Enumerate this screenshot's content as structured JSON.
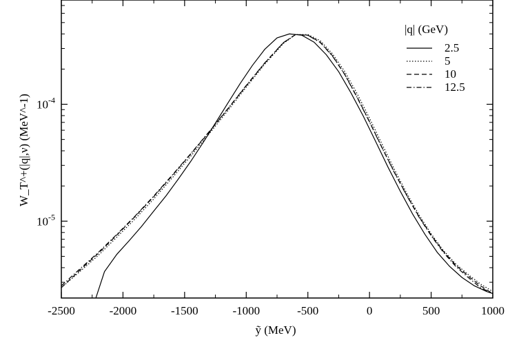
{
  "chart_data": {
    "type": "line",
    "xlabel": "ỹ (MeV)",
    "ylabel": "W_T^+(|q|,ν) (MeV^-1)",
    "xlim": [
      -2500,
      1000
    ],
    "ylim": [
      2.2e-06,
      0.00078
    ],
    "yscale": "log",
    "grid": false,
    "legend_title": "|q| (GeV)",
    "legend_position": "top-right",
    "x_ticks": [
      -2500,
      -2000,
      -1500,
      -1000,
      -500,
      0,
      500,
      1000
    ],
    "x_tick_labels": [
      "-2500",
      "-2000",
      "-1500",
      "-1000",
      "-500",
      "0",
      "500",
      "1000"
    ],
    "y_tick_labels": [
      {
        "value": 0.0001,
        "base": "10",
        "exp": "-4"
      },
      {
        "value": 1e-05,
        "base": "10",
        "exp": "-5"
      }
    ],
    "series": [
      {
        "name": "2.5",
        "style": "solid",
        "color": "#000000",
        "x": [
          -2220,
          -2150,
          -2050,
          -1950,
          -1850,
          -1750,
          -1650,
          -1550,
          -1450,
          -1350,
          -1250,
          -1150,
          -1050,
          -950,
          -850,
          -750,
          -650,
          -550,
          -450,
          -350,
          -250,
          -150,
          -50,
          50,
          150,
          250,
          350,
          450,
          550,
          650,
          750,
          850,
          950,
          1000
        ],
        "y": [
          2.2e-06,
          3.7e-06,
          5.2e-06,
          6.8e-06,
          9e-06,
          1.22e-05,
          1.65e-05,
          2.3e-05,
          3.25e-05,
          4.7e-05,
          6.9e-05,
          0.000102,
          0.00015,
          0.000215,
          0.000295,
          0.00037,
          0.0004,
          0.00039,
          0.00034,
          0.000265,
          0.00019,
          0.000125,
          7.9e-05,
          4.8e-05,
          2.9e-05,
          1.8e-05,
          1.15e-05,
          7.7e-06,
          5.4e-06,
          4.1e-06,
          3.3e-06,
          2.8e-06,
          2.5e-06,
          2.4e-06
        ]
      },
      {
        "name": "5",
        "style": "dotted",
        "color": "#000000",
        "x": [
          -2500,
          -2350,
          -2200,
          -2050,
          -1900,
          -1750,
          -1600,
          -1450,
          -1300,
          -1150,
          -1000,
          -850,
          -700,
          -600,
          -500,
          -400,
          -300,
          -200,
          -100,
          0,
          100,
          200,
          300,
          400,
          500,
          600,
          700,
          800,
          900,
          1000
        ],
        "y": [
          2.7e-06,
          3.7e-06,
          5.1e-06,
          7.3e-06,
          1.05e-05,
          1.55e-05,
          2.35e-05,
          3.6e-05,
          5.6e-05,
          8.8e-05,
          0.00014,
          0.00022,
          0.00033,
          0.000395,
          0.000395,
          0.00035,
          0.00027,
          0.00019,
          0.000123,
          7.6e-05,
          4.6e-05,
          2.8e-05,
          1.75e-05,
          1.14e-05,
          7.8e-06,
          5.6e-06,
          4.3e-06,
          3.5e-06,
          2.9e-06,
          2.5e-06
        ]
      },
      {
        "name": "10",
        "style": "dashed",
        "color": "#000000",
        "x": [
          -2500,
          -2350,
          -2200,
          -2050,
          -1900,
          -1750,
          -1600,
          -1450,
          -1300,
          -1150,
          -1000,
          -850,
          -700,
          -600,
          -500,
          -400,
          -300,
          -200,
          -100,
          0,
          100,
          200,
          300,
          400,
          500,
          600,
          700,
          800,
          900,
          1000
        ],
        "y": [
          2.7e-06,
          3.8e-06,
          5.3e-06,
          7.6e-06,
          1.1e-05,
          1.62e-05,
          2.45e-05,
          3.75e-05,
          5.8e-05,
          9.1e-05,
          0.000144,
          0.000225,
          0.000335,
          0.000395,
          0.00039,
          0.00034,
          0.00026,
          0.00018,
          0.000115,
          7.1e-05,
          4.3e-05,
          2.65e-05,
          1.68e-05,
          1.1e-05,
          7.6e-06,
          5.5e-06,
          4.2e-06,
          3.4e-06,
          2.8e-06,
          2.4e-06
        ]
      },
      {
        "name": "12.5",
        "style": "dashdot",
        "color": "#000000",
        "x": [
          -2500,
          -2350,
          -2200,
          -2050,
          -1900,
          -1750,
          -1600,
          -1450,
          -1300,
          -1150,
          -1000,
          -850,
          -700,
          -600,
          -500,
          -400,
          -300,
          -200,
          -100,
          0,
          100,
          200,
          300,
          400,
          500,
          600,
          700,
          800,
          900,
          1000
        ],
        "y": [
          2.8e-06,
          3.9e-06,
          5.4e-06,
          7.7e-06,
          1.11e-05,
          1.64e-05,
          2.48e-05,
          3.78e-05,
          5.85e-05,
          9.15e-05,
          0.000145,
          0.000226,
          0.000336,
          0.000395,
          0.000389,
          0.000338,
          0.000258,
          0.000179,
          0.000114,
          7.05e-05,
          4.28e-05,
          2.63e-05,
          1.67e-05,
          1.09e-05,
          7.5e-06,
          5.4e-06,
          4.1e-06,
          3.3e-06,
          2.7e-06,
          2.4e-06
        ]
      }
    ]
  }
}
